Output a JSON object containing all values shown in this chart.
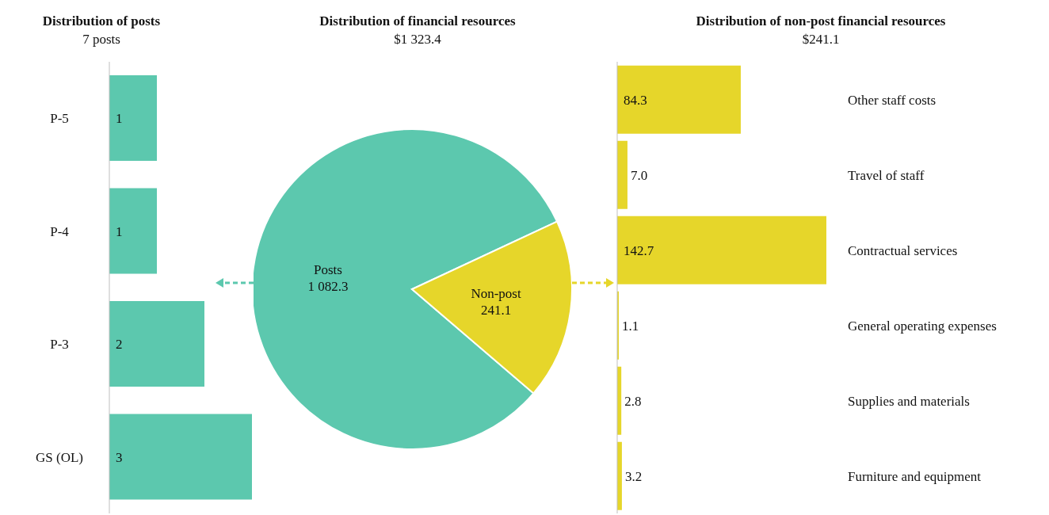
{
  "chart_data": [
    {
      "type": "bar",
      "orientation": "horizontal",
      "title": "Distribution of posts",
      "subtitle": "7 posts",
      "categories": [
        "P-5",
        "P-4",
        "P-3",
        "GS (OL)"
      ],
      "values": [
        1,
        1,
        2,
        3
      ],
      "color": "#5cc8ae",
      "data_labels": true,
      "tick_labels": "y",
      "legend": false
    },
    {
      "type": "pie",
      "title": "Distribution of financial resources",
      "subtitle": "$1 323.4",
      "categories": [
        "Posts",
        "Non-post"
      ],
      "values": [
        1082.3,
        241.1
      ],
      "colors": [
        "#5cc8ae",
        "#e6d62a"
      ],
      "value_labels": [
        "1 082.3",
        "241.1"
      ],
      "legend": false
    },
    {
      "type": "bar",
      "orientation": "horizontal",
      "title": "Distribution of non-post financial resources",
      "subtitle": "$241.1",
      "categories": [
        "Other staff costs",
        "Travel of staff",
        "Contractual services",
        "General operating expenses",
        "Supplies and materials",
        "Furniture and equipment"
      ],
      "values": [
        84.3,
        7.0,
        142.7,
        1.1,
        2.8,
        3.2
      ],
      "color": "#e6d62a",
      "value_labels": [
        "84.3",
        "7.0",
        "142.7",
        "1.1",
        "2.8",
        "3.2"
      ],
      "tick_labels": "y",
      "legend": false
    }
  ]
}
